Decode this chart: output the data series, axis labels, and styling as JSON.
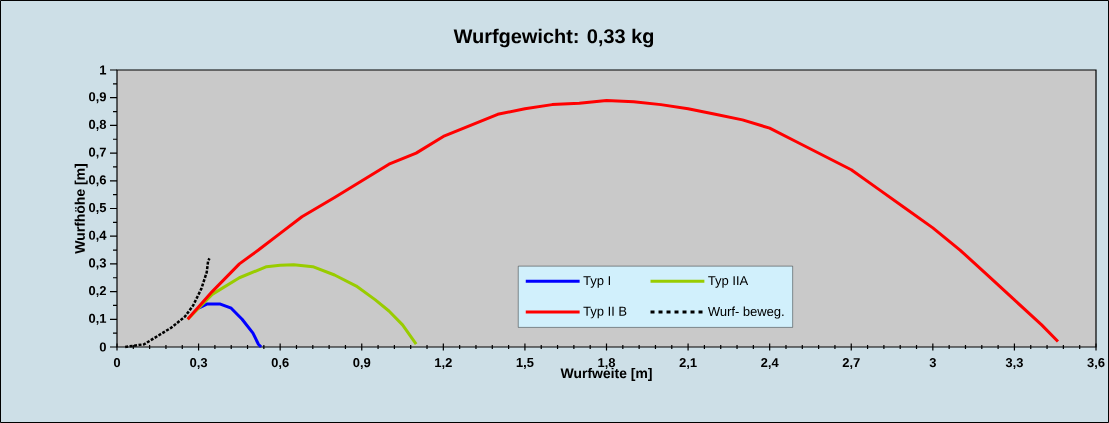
{
  "chart_data": {
    "type": "line",
    "title": "Wurfgewicht: 0,33 kg",
    "xlabel": "Wurfweite [m]",
    "ylabel": "Wurfhöhe [m]",
    "xlim": [
      0,
      3.6
    ],
    "ylim": [
      0,
      1
    ],
    "xticks": [
      0,
      {
        "value": 0.3,
        "label": "0,3"
      },
      {
        "value": 0.6,
        "label": "0,6"
      },
      {
        "value": 0.9,
        "label": "0,9"
      },
      {
        "value": 1.2,
        "label": "1,2"
      },
      {
        "value": 1.5,
        "label": "1,5"
      },
      {
        "value": 1.8,
        "label": "1,8"
      },
      {
        "value": 2.1,
        "label": "2,1"
      },
      {
        "value": 2.4,
        "label": "2,4"
      },
      {
        "value": 2.7,
        "label": "2,7"
      },
      3,
      {
        "value": 3.3,
        "label": "3,3"
      },
      {
        "value": 3.6,
        "label": "3,6"
      }
    ],
    "yticks": [
      0,
      {
        "value": 0.1,
        "label": "0,1"
      },
      {
        "value": 0.2,
        "label": "0,2"
      },
      {
        "value": 0.3,
        "label": "0,3"
      },
      {
        "value": 0.4,
        "label": "0,4"
      },
      {
        "value": 0.5,
        "label": "0,5"
      },
      {
        "value": 0.6,
        "label": "0,6"
      },
      {
        "value": 0.7,
        "label": "0,7"
      },
      {
        "value": 0.8,
        "label": "0,8"
      },
      {
        "value": 0.9,
        "label": "0,9"
      },
      1
    ],
    "grid": false,
    "legend": "bottom",
    "marker": "none",
    "line_style": "solid",
    "series": [
      {
        "name": "Typ I",
        "color": "#0000ff",
        "x": [
          0.3,
          0.33,
          0.38,
          0.42,
          0.46,
          0.5,
          0.52,
          0.53
        ],
        "values": [
          0.14,
          0.155,
          0.155,
          0.14,
          0.1,
          0.05,
          0.01,
          0
        ]
      },
      {
        "name": "Typ IIA",
        "color": "#99cc00",
        "x": [
          0.26,
          0.35,
          0.45,
          0.55,
          0.6,
          0.65,
          0.72,
          0.8,
          0.88,
          0.95,
          1.0,
          1.05,
          1.1
        ],
        "values": [
          0.1,
          0.19,
          0.25,
          0.29,
          0.295,
          0.297,
          0.29,
          0.26,
          0.22,
          0.17,
          0.13,
          0.08,
          0.01
        ]
      },
      {
        "name": "Typ II B",
        "color": "#ff0000",
        "x": [
          0.26,
          0.35,
          0.45,
          0.52,
          0.6,
          0.68,
          0.8,
          0.9,
          1.0,
          1.1,
          1.2,
          1.3,
          1.4,
          1.5,
          1.6,
          1.7,
          1.8,
          1.9,
          2.0,
          2.1,
          2.2,
          2.3,
          2.4,
          2.5,
          2.6,
          2.7,
          2.8,
          2.9,
          3.0,
          3.1,
          3.2,
          3.3,
          3.4,
          3.46
        ],
        "values": [
          0.1,
          0.2,
          0.3,
          0.35,
          0.41,
          0.47,
          0.54,
          0.6,
          0.66,
          0.7,
          0.76,
          0.8,
          0.84,
          0.86,
          0.875,
          0.88,
          0.89,
          0.885,
          0.875,
          0.86,
          0.84,
          0.82,
          0.79,
          0.74,
          0.69,
          0.64,
          0.57,
          0.5,
          0.43,
          0.35,
          0.26,
          0.17,
          0.08,
          0.02
        ]
      },
      {
        "name": "Wurf- beweg.",
        "color": "#000000",
        "line_style": "dashed",
        "x": [
          0.03,
          0.1,
          0.15,
          0.2,
          0.25,
          0.28,
          0.31,
          0.33,
          0.335,
          0.34
        ],
        "values": [
          0,
          0.01,
          0.04,
          0.07,
          0.11,
          0.15,
          0.21,
          0.27,
          0.31,
          0.32
        ]
      }
    ]
  }
}
